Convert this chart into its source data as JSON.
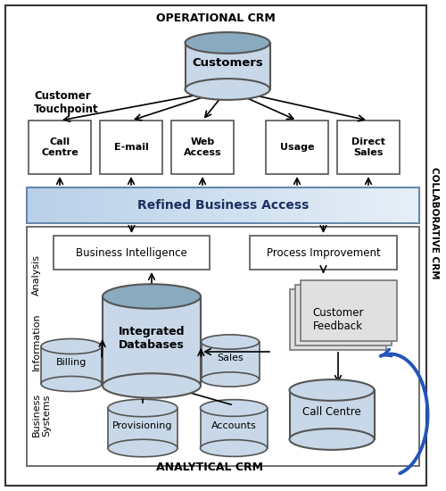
{
  "title_operational": "OPERATIONAL CRM",
  "title_analytical": "ANALYTICAL CRM",
  "title_collaborative": "COLLABORATIVE CRM",
  "customers_label": "Customers",
  "touchpoint_label": "Customer\nTouchpoint",
  "channel_boxes": [
    "Call\nCentre",
    "E-mail",
    "Web\nAccess",
    "Usage",
    "Direct\nSales"
  ],
  "refined_label": "Refined Business Access",
  "analysis_label": "Analysis",
  "information_label": "Information",
  "business_systems_label": "Business\nSystems",
  "bi_label": "Business Intelligence",
  "pi_label": "Process Improvement",
  "int_db_label": "Integrated\nDatabases",
  "billing_label": "Billing",
  "sales_label": "Sales",
  "provisioning_label": "Provisioning",
  "accounts_label": "Accounts",
  "cf_label": "Customer\nFeedback",
  "cc_label": "Call Centre",
  "bg_color": "#ffffff",
  "cyl_fill": "#c8d8e8",
  "cyl_fill_dark": "#8aaabf",
  "cyl_edge": "#555555",
  "refined_fill": "#ccddf0",
  "refined_edge": "#6688aa",
  "box_fill": "#ffffff",
  "box_edge": "#555555",
  "cf_fill": "#e0e0e0",
  "outer_edge": "#333333",
  "inner_edge": "#555555"
}
